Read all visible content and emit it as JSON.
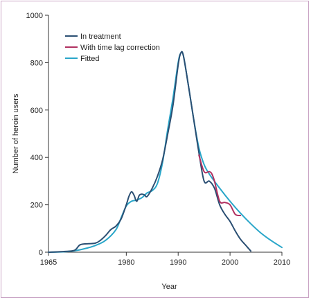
{
  "chart_data": {
    "type": "line",
    "title": "",
    "xlabel": "Year",
    "ylabel": "Number of heroin users",
    "xlim": [
      1965,
      2010
    ],
    "ylim": [
      0,
      1000
    ],
    "xticks": [
      1965,
      1980,
      1990,
      2000,
      2010
    ],
    "yticks": [
      0,
      200,
      400,
      600,
      800,
      1000
    ],
    "grid": false,
    "legend_position": "top-left",
    "series": [
      {
        "name": "In treatment",
        "color": "#2b4f73",
        "x": [
          1965,
          1968,
          1970,
          1971,
          1972,
          1974,
          1975,
          1976,
          1977,
          1978,
          1979,
          1980,
          1980.5,
          1981,
          1981.5,
          1982,
          1982.5,
          1983,
          1983.5,
          1984,
          1985,
          1986,
          1987,
          1988,
          1989,
          1990,
          1990.5,
          1991,
          1992,
          1993,
          1994,
          1995,
          1996,
          1997,
          1998,
          1999,
          2000,
          2001,
          2002,
          2003,
          2004
        ],
        "y": [
          0,
          3,
          8,
          30,
          35,
          38,
          50,
          70,
          95,
          110,
          140,
          200,
          235,
          255,
          240,
          215,
          240,
          245,
          242,
          235,
          270,
          320,
          390,
          500,
          620,
          790,
          840,
          830,
          700,
          560,
          420,
          300,
          300,
          270,
          200,
          160,
          130,
          90,
          55,
          30,
          5
        ]
      },
      {
        "name": "With time lag correction",
        "color": "#b03060",
        "x": [
          1994,
          1995,
          1996,
          1996.5,
          1997,
          1998,
          1999,
          2000,
          2001,
          2002
        ],
        "y": [
          410,
          340,
          340,
          330,
          300,
          215,
          210,
          200,
          160,
          155
        ]
      },
      {
        "name": "Fitted",
        "color": "#29a6c9",
        "x": [
          1965,
          1968,
          1970,
          1972,
          1974,
          1976,
          1978,
          1979,
          1980,
          1981,
          1982,
          1983,
          1984,
          1985,
          1986,
          1987,
          1988,
          1989,
          1990,
          1990.5,
          1991,
          1992,
          1993,
          1994,
          1995,
          1996,
          1998,
          2000,
          2002,
          2004,
          2006,
          2008,
          2010
        ],
        "y": [
          0,
          2,
          6,
          15,
          28,
          50,
          95,
          145,
          195,
          215,
          220,
          230,
          250,
          260,
          290,
          380,
          520,
          650,
          800,
          840,
          830,
          700,
          560,
          440,
          370,
          330,
          270,
          215,
          165,
          120,
          80,
          48,
          20
        ]
      }
    ]
  }
}
